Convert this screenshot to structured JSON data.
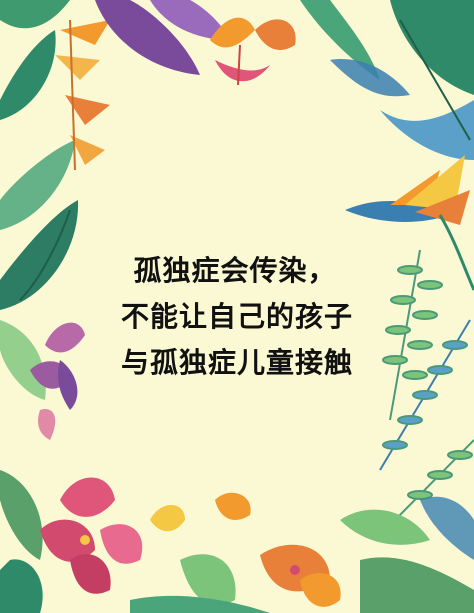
{
  "poster": {
    "lines": [
      "孤独症会传染，",
      "不能让自己的孩子",
      "与孤独症儿童接触"
    ]
  },
  "colors": {
    "background": "#fbf9d4",
    "text": "#111111",
    "leaf_dark": "#2f8a6a",
    "leaf_light": "#7cc47a",
    "leaf_blue": "#3a7fb0",
    "purple": "#7a4b9a",
    "orange": "#f29a2e",
    "pink": "#e0557a",
    "yellow": "#f4c842"
  },
  "decor": [
    "tropical-leaf-icon",
    "bird-of-paradise-icon",
    "lily-icon",
    "fern-icon",
    "orchid-icon"
  ]
}
